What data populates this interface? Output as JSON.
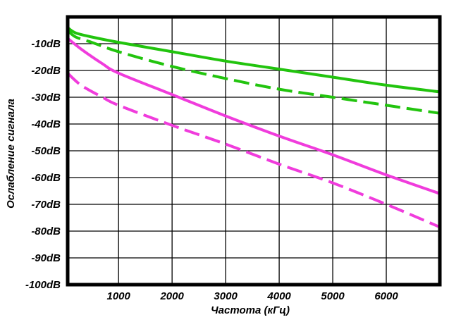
{
  "chart_data": {
    "type": "line",
    "title": "",
    "xlabel": "Частота (кГц)",
    "ylabel": "Ослабление сигнала",
    "xlim": [
      50,
      7000
    ],
    "ylim": [
      -100,
      0
    ],
    "grid": true,
    "x_ticks": [
      1000,
      2000,
      3000,
      4000,
      5000,
      6000
    ],
    "x_tick_labels": [
      "1000",
      "2000",
      "3000",
      "4000",
      "5000",
      "6000"
    ],
    "y_ticks": [
      -10,
      -20,
      -30,
      -40,
      -50,
      -60,
      -70,
      -80,
      -90,
      -100
    ],
    "y_tick_labels": [
      "-10dB",
      "-20dB",
      "-30dB",
      "-40dB",
      "-50dB",
      "-60dB",
      "-70dB",
      "-80dB",
      "-90dB",
      "-100dB"
    ],
    "series": [
      {
        "color": "#22c40e",
        "style": "solid",
        "x": [
          50,
          200,
          500,
          1000,
          2000,
          3000,
          4000,
          5000,
          6000,
          7000
        ],
        "y": [
          -4,
          -6,
          -7.5,
          -9.5,
          -13,
          -16.5,
          -19.5,
          -22.5,
          -25.5,
          -28
        ]
      },
      {
        "color": "#22c40e",
        "style": "dashed",
        "x": [
          50,
          200,
          500,
          1000,
          2000,
          3000,
          4000,
          5000,
          6000,
          7000
        ],
        "y": [
          -5,
          -7.5,
          -9.5,
          -13,
          -18.5,
          -23,
          -27,
          -30,
          -33,
          -36
        ]
      },
      {
        "color": "#f03cdc",
        "style": "solid",
        "x": [
          50,
          300,
          700,
          1000,
          2000,
          3000,
          4000,
          5000,
          6000,
          7000
        ],
        "y": [
          -8,
          -12,
          -17.5,
          -21,
          -29,
          -37,
          -44.5,
          -51.5,
          -59,
          -66
        ]
      },
      {
        "color": "#f03cdc",
        "style": "dashed",
        "x": [
          50,
          300,
          700,
          1000,
          2000,
          3000,
          4000,
          5000,
          6000,
          7000
        ],
        "y": [
          -21,
          -25.5,
          -30,
          -33,
          -40.5,
          -47.5,
          -55,
          -62,
          -70,
          -78.5
        ]
      }
    ]
  }
}
